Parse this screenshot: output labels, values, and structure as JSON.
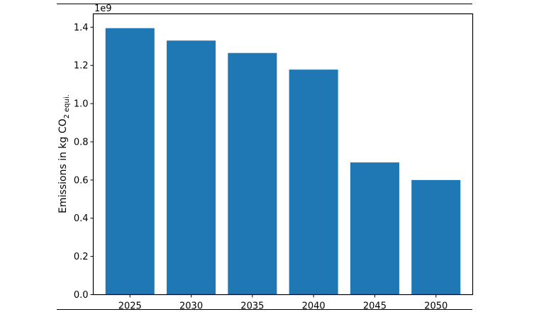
{
  "chart_data": {
    "type": "bar",
    "categories": [
      "2025",
      "2030",
      "2035",
      "2040",
      "2045",
      "2050"
    ],
    "values": [
      1.395,
      1.33,
      1.265,
      1.178,
      0.692,
      0.6
    ],
    "multiplier_label": "1e9",
    "ylabel_main": "Emissions in  kg CO",
    "ylabel_sub_2": "2",
    "ylabel_sub_equi": "equi",
    "ylabel_suffix": ".",
    "ylim": [
      0,
      1.47
    ],
    "yticks": [
      0.0,
      0.2,
      0.4,
      0.6,
      0.8,
      1.0,
      1.2,
      1.4
    ],
    "ytick_labels": [
      "0.0",
      "0.2",
      "0.4",
      "0.6",
      "0.8",
      "1.0",
      "1.2",
      "1.4"
    ],
    "bar_color": "#1f77b4",
    "grid": false,
    "legend": "none"
  }
}
